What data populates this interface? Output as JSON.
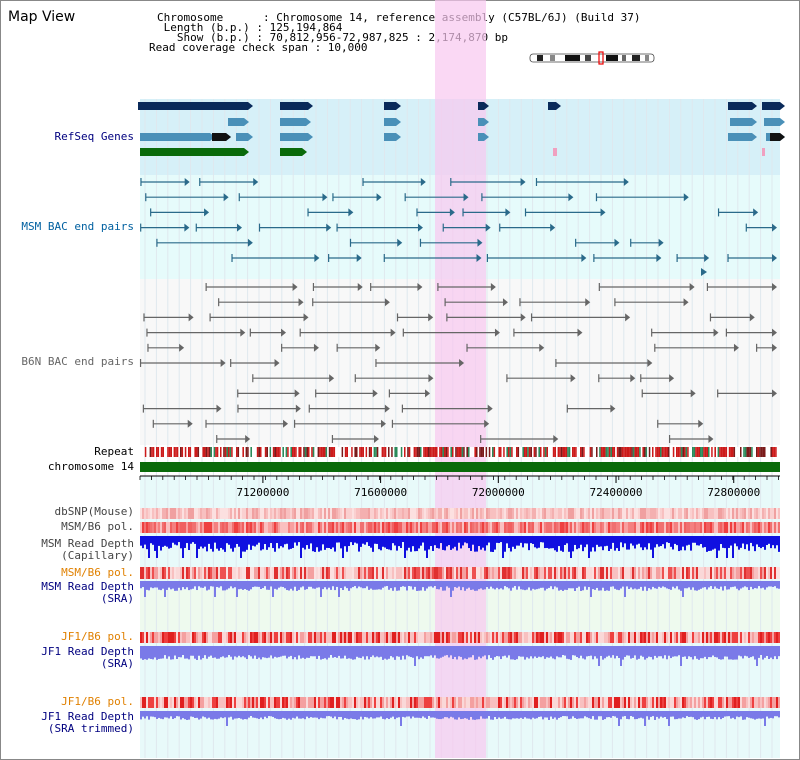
{
  "app": {
    "title": "Map View"
  },
  "info": {
    "chromosome": "Chromosome      : Chromosome 14, reference assembly (C57BL/6J) (Build 37)",
    "length": " Length (b.p.) : 125,194,864",
    "show": "   Show (b.p.) : 70,812,956-72,987,825 : 2,174,870 bp",
    "span": "Read coverage check span : 10,000"
  },
  "tracks": {
    "refseq": "RefSeq Genes",
    "msm_bac": "MSM BAC end pairs",
    "b6n_bac": "B6N BAC end pairs",
    "repeat": "Repeat",
    "chromosome": "chromosome 14",
    "dbsnp": "dbSNP(Mouse)",
    "msm_b6_pol1": "MSM/B6 pol.",
    "msm_depth_cap_1": "MSM Read Depth",
    "msm_depth_cap_2": "(Capillary)",
    "msm_b6_pol2": "MSM/B6 pol.",
    "msm_depth_sra_1": "MSM Read Depth",
    "msm_depth_sra_2": "(SRA)",
    "jf1_b6_pol1": "JF1/B6 pol.",
    "jf1_depth_sra_1": "JF1 Read Depth",
    "jf1_depth_sra_2": "(SRA)",
    "jf1_b6_pol2": "JF1/B6 pol.",
    "jf1_depth_trim_1": "JF1 Read Depth",
    "jf1_depth_trim_2": "(SRA trimmed)"
  },
  "axis": {
    "ticks": [
      "71200000",
      "71600000",
      "72000000",
      "72400000",
      "72800000"
    ],
    "tick_values": [
      71200000,
      71600000,
      72000000,
      72400000,
      72800000
    ],
    "range": [
      70812956,
      72987825
    ]
  },
  "colors": {
    "refseq_bg": "#d6f0f8",
    "bac_bg": "#e6fbfb",
    "highlight": "#f8c8f0",
    "msm_color": "#2a6a8a",
    "b6n_color": "#666666",
    "chrom_green": "#0a6a0a",
    "gene_navy": "#0a2a5a",
    "gene_blue": "#4a90b8",
    "gene_green": "#0a6a0a",
    "depth_dark": "#1010e0",
    "depth_light": "#7a7ae8",
    "label_navy": "#00007f",
    "label_orange": "#e08000",
    "label_teal": "#0060a0"
  }
}
